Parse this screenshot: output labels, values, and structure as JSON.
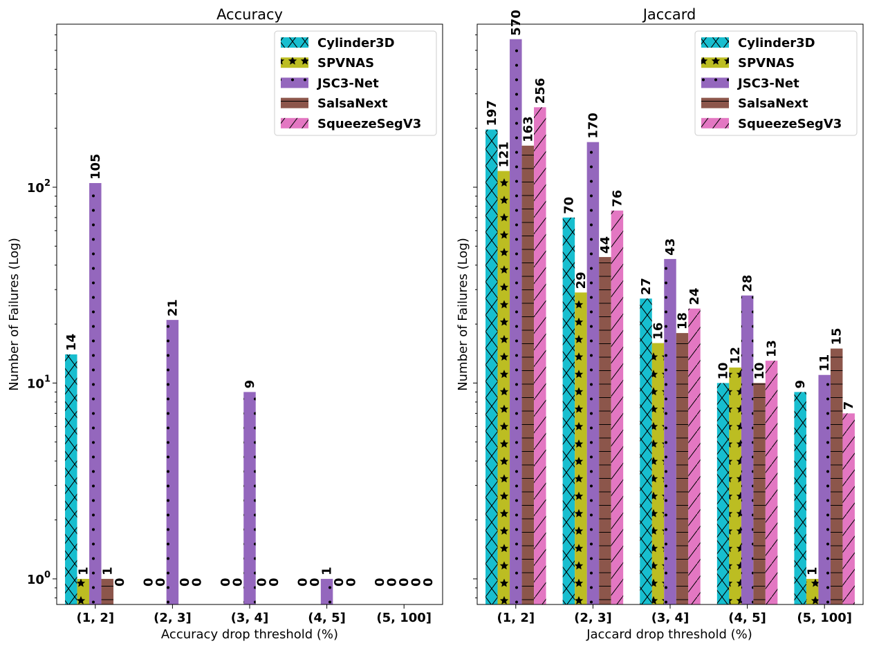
{
  "chart_data": [
    {
      "type": "bar",
      "title": "Accuracy",
      "xlabel": "Accuracy drop threshold (%)",
      "ylabel": "Number of Failures (Log)",
      "yscale": "log",
      "ylim": [
        0.74,
        680
      ],
      "grid": false,
      "legend_placement": "top-right",
      "categories": [
        "(1, 2]",
        "(2, 3]",
        "(3, 4]",
        "(4, 5]",
        "(5, 100]"
      ],
      "yticks": [
        {
          "value": 1,
          "label": "10^0"
        },
        {
          "value": 10,
          "label": "10^1"
        },
        {
          "value": 100,
          "label": "10^2"
        }
      ],
      "series": [
        {
          "name": "Cylinder3D",
          "values": [
            14,
            0,
            0,
            0,
            0
          ]
        },
        {
          "name": "SPVNAS",
          "values": [
            1,
            0,
            0,
            0,
            0
          ]
        },
        {
          "name": "JSC3-Net",
          "values": [
            105,
            21,
            9,
            1,
            0
          ]
        },
        {
          "name": "SalsaNext",
          "values": [
            1,
            0,
            0,
            0,
            0
          ]
        },
        {
          "name": "SqueezeSegV3",
          "values": [
            0,
            0,
            0,
            0,
            0
          ]
        }
      ]
    },
    {
      "type": "bar",
      "title": "Jaccard",
      "xlabel": "Jaccard drop threshold (%)",
      "ylabel": "Number of Failures (Log)",
      "yscale": "log",
      "ylim": [
        0.74,
        680
      ],
      "grid": false,
      "legend_placement": "top-right",
      "categories": [
        "(1, 2]",
        "(2, 3]",
        "(3, 4]",
        "(4, 5]",
        "(5, 100]"
      ],
      "yticks": [],
      "series": [
        {
          "name": "Cylinder3D",
          "values": [
            197,
            70,
            27,
            10,
            9
          ]
        },
        {
          "name": "SPVNAS",
          "values": [
            121,
            29,
            16,
            12,
            1
          ]
        },
        {
          "name": "JSC3-Net",
          "values": [
            570,
            170,
            43,
            28,
            11
          ]
        },
        {
          "name": "SalsaNext",
          "values": [
            163,
            44,
            18,
            10,
            15
          ]
        },
        {
          "name": "SqueezeSegV3",
          "values": [
            256,
            76,
            24,
            13,
            7
          ]
        }
      ]
    }
  ],
  "styles": {
    "colors": [
      "#17becf",
      "#bcbd22",
      "#9467bd",
      "#8c564b",
      "#e377c2"
    ],
    "hatches": [
      "x",
      "star",
      "dot",
      "hline",
      "slash"
    ]
  }
}
